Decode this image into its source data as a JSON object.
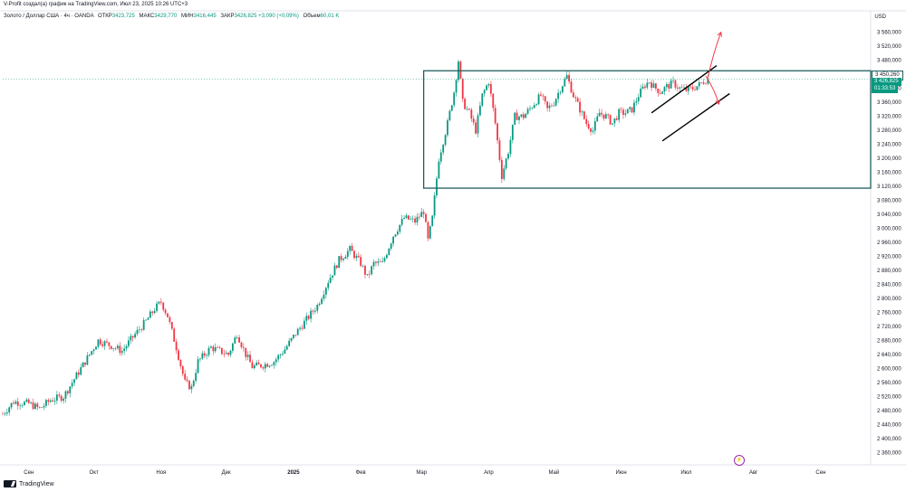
{
  "header": {
    "published_line": "V-Profit создал(а) график на TradingView.com, Июл 23, 2025 10:26 UTC+3",
    "symbol": "Золото / Доллар США · 4ч · OANDA",
    "open_label": "ОТКР",
    "open_value": "3423,725",
    "high_label": "МАКС",
    "high_value": "3429,770",
    "low_label": "МИН",
    "low_value": "3416,445",
    "close_label": "ЗАКР",
    "close_value": "3426,825",
    "change": "+3,090 (+0,09%)",
    "volume_label": "Объем",
    "volume_value": "60,01 K",
    "currency": "USD"
  },
  "price_tags": {
    "box_top": "3 450,260",
    "current": "3 426,825",
    "countdown": "01:33:53"
  },
  "footer": {
    "brand": "TradingView"
  },
  "badge": {
    "glyph": "⚡"
  },
  "colors": {
    "up": "#089981",
    "down": "#f23645",
    "box": "#1e5f5c",
    "arrow": "#f23645"
  },
  "chart_data": {
    "type": "candlestick",
    "title": "Золото / Доллар США · 4ч · OANDA",
    "xlabel": "",
    "ylabel": "USD",
    "ylim": [
      2330,
      3580
    ],
    "y_ticks": [
      2360,
      2400,
      2440,
      2480,
      2520,
      2560,
      2600,
      2640,
      2680,
      2720,
      2760,
      2800,
      2840,
      2880,
      2920,
      2960,
      3000,
      3040,
      3080,
      3120,
      3160,
      3200,
      3240,
      3280,
      3320,
      3360,
      3400,
      3440,
      3480,
      3520,
      3560
    ],
    "y_tick_labels": [
      "2 360,000",
      "2 400,000",
      "2 440,000",
      "2 480,000",
      "2 520,000",
      "2 560,000",
      "2 600,000",
      "2 640,000",
      "2 680,000",
      "2 720,000",
      "2 760,000",
      "2 800,000",
      "2 840,000",
      "2 880,000",
      "2 920,000",
      "2 960,000",
      "3 000,000",
      "3 040,000",
      "3 080,000",
      "3 120,000",
      "3 160,000",
      "3 200,000",
      "3 240,000",
      "3 280,000",
      "3 320,000",
      "3 360,000",
      "3 400,000",
      "3 440,000",
      "3 480,000",
      "3 520,000",
      "3 560,000"
    ],
    "x_labels": [
      "Сен",
      "Окт",
      "Ноя",
      "Дек",
      "2025",
      "Фев",
      "Мар",
      "Апр",
      "Май",
      "Июн",
      "Июл",
      "Авг",
      "Сен"
    ],
    "x_label_days": [
      12,
      42,
      73,
      103,
      134,
      165,
      193,
      224,
      254,
      285,
      315,
      346,
      377
    ],
    "last_data_day": 325,
    "day_range": [
      0,
      400
    ],
    "price_path": [
      [
        0,
        2470
      ],
      [
        5,
        2505
      ],
      [
        12,
        2500
      ],
      [
        17,
        2485
      ],
      [
        22,
        2510
      ],
      [
        28,
        2520
      ],
      [
        33,
        2570
      ],
      [
        38,
        2620
      ],
      [
        44,
        2680
      ],
      [
        50,
        2665
      ],
      [
        55,
        2650
      ],
      [
        60,
        2690
      ],
      [
        66,
        2735
      ],
      [
        70,
        2770
      ],
      [
        73,
        2790
      ],
      [
        76,
        2750
      ],
      [
        80,
        2660
      ],
      [
        84,
        2560
      ],
      [
        87,
        2545
      ],
      [
        90,
        2620
      ],
      [
        96,
        2660
      ],
      [
        100,
        2650
      ],
      [
        104,
        2640
      ],
      [
        108,
        2700
      ],
      [
        112,
        2640
      ],
      [
        115,
        2605
      ],
      [
        120,
        2610
      ],
      [
        125,
        2620
      ],
      [
        130,
        2655
      ],
      [
        135,
        2700
      ],
      [
        140,
        2740
      ],
      [
        145,
        2780
      ],
      [
        150,
        2850
      ],
      [
        155,
        2910
      ],
      [
        160,
        2940
      ],
      [
        165,
        2900
      ],
      [
        168,
        2860
      ],
      [
        171,
        2900
      ],
      [
        175,
        2900
      ],
      [
        180,
        2980
      ],
      [
        185,
        3030
      ],
      [
        190,
        3020
      ],
      [
        194,
        3050
      ],
      [
        196,
        2965
      ],
      [
        198,
        3030
      ],
      [
        201,
        3200
      ],
      [
        205,
        3300
      ],
      [
        208,
        3390
      ],
      [
        210,
        3480
      ],
      [
        212,
        3360
      ],
      [
        215,
        3330
      ],
      [
        218,
        3280
      ],
      [
        221,
        3380
      ],
      [
        224,
        3420
      ],
      [
        227,
        3300
      ],
      [
        230,
        3150
      ],
      [
        233,
        3220
      ],
      [
        236,
        3320
      ],
      [
        240,
        3320
      ],
      [
        244,
        3350
      ],
      [
        248,
        3380
      ],
      [
        251,
        3340
      ],
      [
        254,
        3360
      ],
      [
        257,
        3400
      ],
      [
        260,
        3435
      ],
      [
        263,
        3380
      ],
      [
        266,
        3340
      ],
      [
        269,
        3300
      ],
      [
        272,
        3280
      ],
      [
        275,
        3330
      ],
      [
        278,
        3320
      ],
      [
        281,
        3300
      ],
      [
        284,
        3330
      ],
      [
        287,
        3330
      ],
      [
        290,
        3340
      ],
      [
        293,
        3380
      ],
      [
        296,
        3410
      ],
      [
        298,
        3420
      ],
      [
        300,
        3405
      ],
      [
        303,
        3390
      ],
      [
        306,
        3405
      ],
      [
        309,
        3415
      ],
      [
        312,
        3400
      ],
      [
        315,
        3395
      ],
      [
        318,
        3400
      ],
      [
        321,
        3410
      ],
      [
        323,
        3420
      ],
      [
        325,
        3427
      ]
    ],
    "annotations": {
      "range_box": {
        "day_start": 194,
        "day_end": 400,
        "price_top": 3450.26,
        "price_bottom": 3115
      },
      "channel_upper": {
        "from": [
          299,
          3330
        ],
        "to": [
          329,
          3465
        ]
      },
      "channel_lower": {
        "from": [
          304,
          3250
        ],
        "to": [
          335,
          3385
        ]
      },
      "arrow_up": {
        "from": [
          325,
          3430
        ],
        "to": [
          331,
          3560
        ]
      },
      "arrow_down": {
        "from": [
          324,
          3435
        ],
        "to": [
          330,
          3355
        ]
      }
    }
  }
}
